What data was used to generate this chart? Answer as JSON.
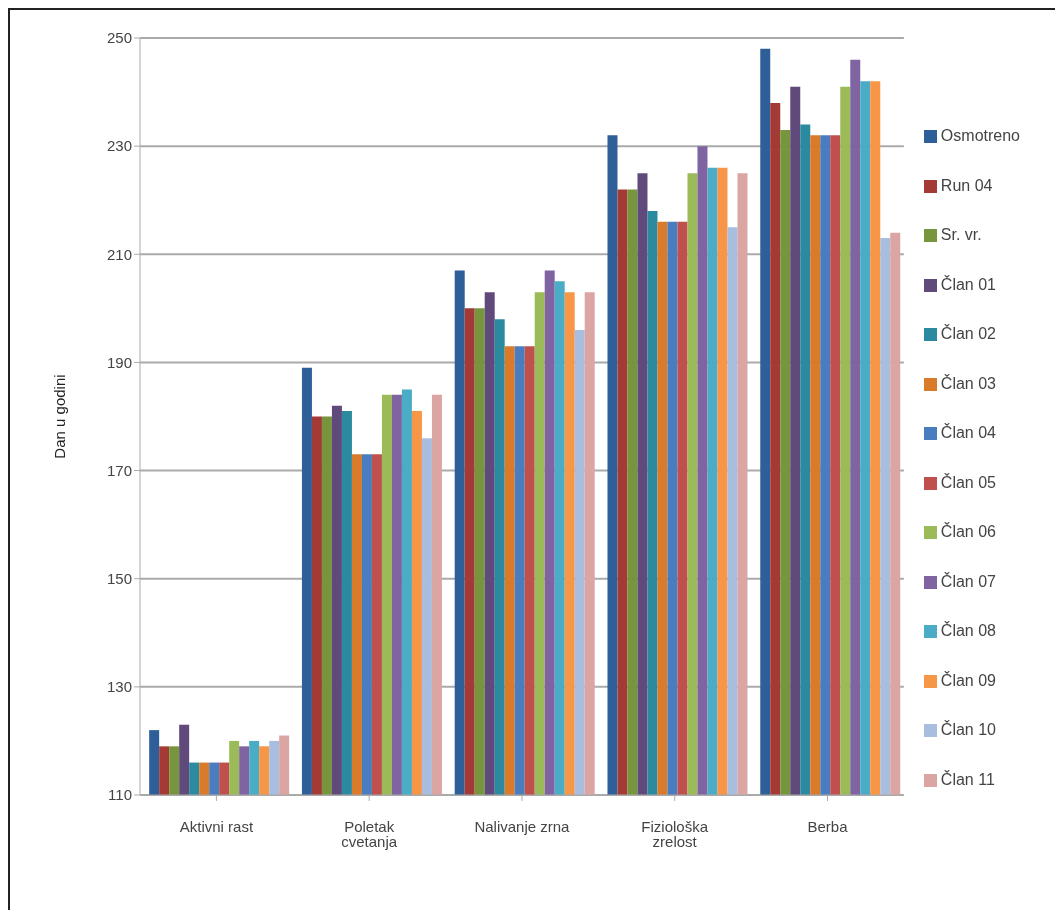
{
  "chart_data": {
    "type": "bar",
    "ylabel": "Dan u godini",
    "categories": [
      "Aktivni rast",
      "Poletak cvetanja",
      "Nalivanje zrna",
      "Fiziološka zrelost",
      "Berba"
    ],
    "series": [
      {
        "name": "Osmotreno",
        "color": "#2f5f98",
        "values": [
          122,
          189,
          207,
          232,
          248
        ]
      },
      {
        "name": "Run 04",
        "color": "#a33a36",
        "values": [
          119,
          180,
          200,
          222,
          238
        ]
      },
      {
        "name": "Sr. vr.",
        "color": "#77953d",
        "values": [
          119,
          180,
          200,
          222,
          233
        ]
      },
      {
        "name": "Član 01",
        "color": "#5f4a7b",
        "values": [
          123,
          182,
          203,
          225,
          241
        ]
      },
      {
        "name": "Član 02",
        "color": "#2c8aa0",
        "values": [
          116,
          181,
          198,
          218,
          234
        ]
      },
      {
        "name": "Član 03",
        "color": "#d97b2a",
        "values": [
          116,
          173,
          193,
          216,
          232
        ]
      },
      {
        "name": "Član 04",
        "color": "#4a7dbf",
        "values": [
          116,
          173,
          193,
          216,
          232
        ]
      },
      {
        "name": "Član 05",
        "color": "#c0504d",
        "values": [
          116,
          173,
          193,
          216,
          232
        ]
      },
      {
        "name": "Član 06",
        "color": "#9bbb59",
        "values": [
          120,
          184,
          203,
          225,
          241
        ]
      },
      {
        "name": "Član 07",
        "color": "#8064a2",
        "values": [
          119,
          184,
          207,
          230,
          246
        ]
      },
      {
        "name": "Član 08",
        "color": "#4bacc6",
        "values": [
          120,
          185,
          205,
          226,
          242
        ]
      },
      {
        "name": "Član 09",
        "color": "#f79646",
        "values": [
          119,
          181,
          203,
          226,
          242
        ]
      },
      {
        "name": "Član 10",
        "color": "#a9bedf",
        "values": [
          120,
          176,
          196,
          215,
          213
        ]
      },
      {
        "name": "Član 11",
        "color": "#dba5a4",
        "values": [
          121,
          184,
          203,
          225,
          214
        ]
      }
    ],
    "ylim": [
      110,
      250
    ],
    "yticks": [
      110,
      130,
      150,
      170,
      190,
      210,
      230,
      250
    ],
    "grid": "y",
    "legend": "right"
  }
}
